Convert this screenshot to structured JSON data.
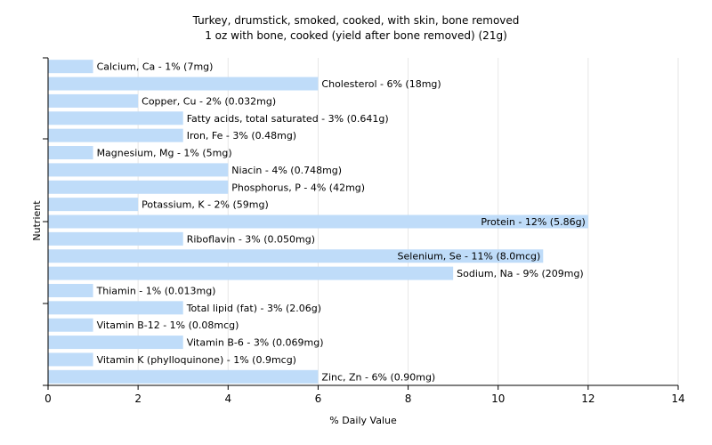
{
  "chart_data": {
    "type": "bar",
    "orientation": "horizontal",
    "title": "Turkey, drumstick, smoked, cooked, with skin, bone removed",
    "subtitle": "1 oz with bone, cooked (yield after bone removed) (21g)",
    "xlabel": "% Daily Value",
    "ylabel": "Nutrient",
    "xlim": [
      0,
      14
    ],
    "xticks": [
      "0",
      "2",
      "4",
      "6",
      "8",
      "10",
      "12",
      "14"
    ],
    "grid": "vertical",
    "bar_color": "#bfdcf9",
    "categories": [
      "Calcium, Ca",
      "Cholesterol",
      "Copper, Cu",
      "Fatty acids, total saturated",
      "Iron, Fe",
      "Magnesium, Mg",
      "Niacin",
      "Phosphorus, P",
      "Potassium, K",
      "Protein",
      "Riboflavin",
      "Selenium, Se",
      "Sodium, Na",
      "Thiamin",
      "Total lipid (fat)",
      "Vitamin B-12",
      "Vitamin B-6",
      "Vitamin K (phylloquinone)",
      "Zinc, Zn"
    ],
    "values": [
      1,
      6,
      2,
      3,
      3,
      1,
      4,
      4,
      2,
      12,
      3,
      11,
      9,
      1,
      3,
      1,
      3,
      1,
      6
    ],
    "labels": [
      "Calcium, Ca - 1% (7mg)",
      "Cholesterol - 6% (18mg)",
      "Copper, Cu - 2% (0.032mg)",
      "Fatty acids, total saturated - 3% (0.641g)",
      "Iron, Fe - 3% (0.48mg)",
      "Magnesium, Mg - 1% (5mg)",
      "Niacin - 4% (0.748mg)",
      "Phosphorus, P - 4% (42mg)",
      "Potassium, K - 2% (59mg)",
      "Protein - 12% (5.86g)",
      "Riboflavin - 3% (0.050mg)",
      "Selenium, Se - 11% (8.0mcg)",
      "Sodium, Na - 9% (209mg)",
      "Thiamin - 1% (0.013mg)",
      "Total lipid (fat) - 3% (2.06g)",
      "Vitamin B-12 - 1% (0.08mcg)",
      "Vitamin B-6 - 3% (0.069mg)",
      "Vitamin K (phylloquinone) - 1% (0.9mcg)",
      "Zinc, Zn - 6% (0.90mg)"
    ]
  }
}
